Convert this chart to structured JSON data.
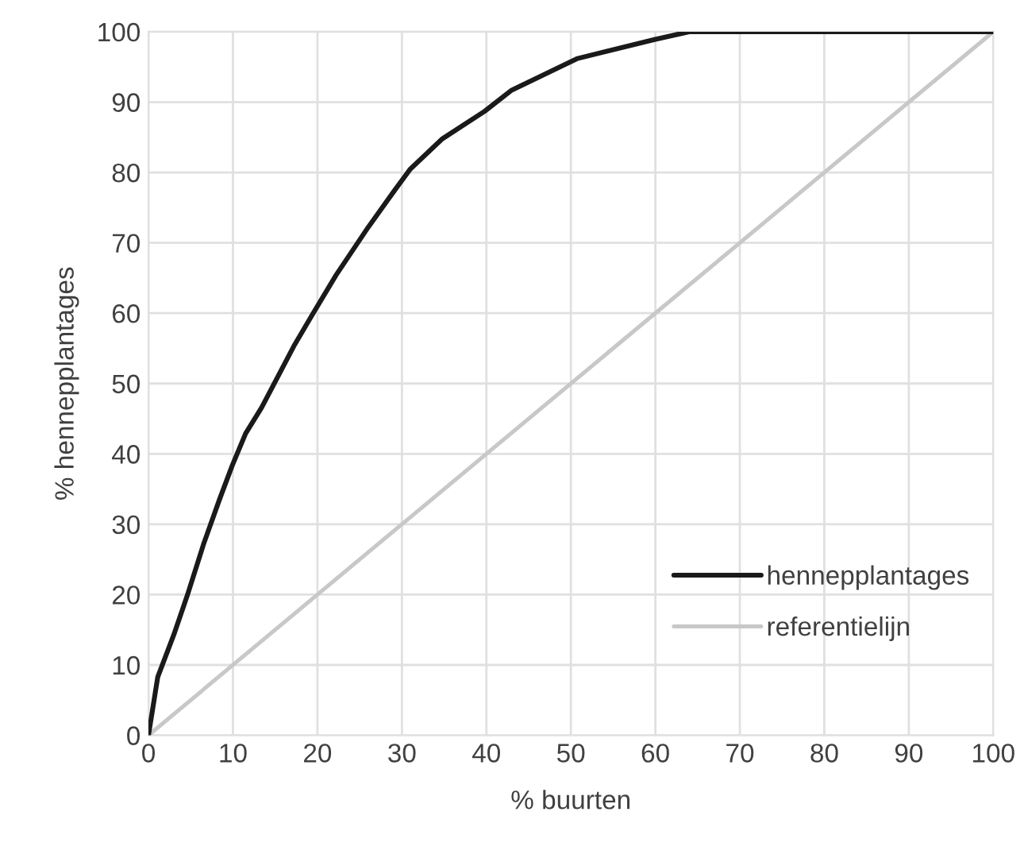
{
  "chart_data": {
    "type": "line",
    "xlabel": "% buurten",
    "ylabel": "% hennepplantages",
    "xlim": [
      0,
      100
    ],
    "ylim": [
      0,
      100
    ],
    "xticks": [
      0,
      10,
      20,
      30,
      40,
      50,
      60,
      70,
      80,
      90,
      100
    ],
    "yticks": [
      0,
      10,
      20,
      30,
      40,
      50,
      60,
      70,
      80,
      90,
      100
    ],
    "grid": true,
    "legend": "bottom right",
    "marker": "none",
    "line_style": "solid",
    "series": [
      {
        "name": "hennepplantages",
        "color": "#1a1a1a",
        "x": [
          0,
          1.1,
          3.0,
          4.6,
          6.5,
          8.4,
          9.9,
          11.5,
          13.4,
          17.2,
          19.4,
          22.2,
          26.0,
          29.1,
          31.0,
          34.8,
          39.8,
          43.0,
          50.8,
          59.9,
          64.0,
          100
        ],
        "values": [
          0,
          8.3,
          14.3,
          19.9,
          27.1,
          33.5,
          38.3,
          42.9,
          46.6,
          55.3,
          59.8,
          65.4,
          72.2,
          77.4,
          80.5,
          84.8,
          88.7,
          91.7,
          96.2,
          98.9,
          100,
          100
        ]
      },
      {
        "name": "referentielijn",
        "color": "#c8c8c8",
        "x": [
          0,
          100
        ],
        "values": [
          0,
          100
        ]
      }
    ]
  }
}
